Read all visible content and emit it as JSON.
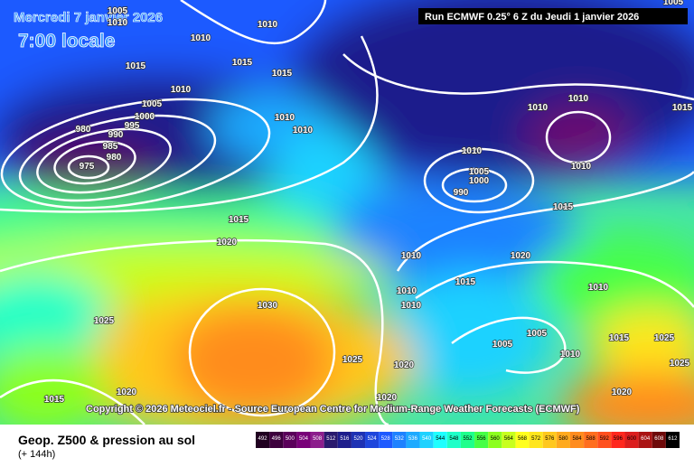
{
  "header": {
    "date": "Mercredi 7 janvier 2026",
    "time": "7:00 locale",
    "run": "Run ECMWF 0.25° 6 Z du Jeudi 1 janvier 2026"
  },
  "copyright": "Copyright © 2026 Meteociel.fr - Source European Centre for Medium-Range Weather Forecasts (ECMWF)",
  "footer": {
    "title": "Geop. Z500 & pression au sol",
    "lead": "(+ 144h)"
  },
  "isobar_labels": [
    1005,
    1010,
    1015,
    1010,
    1010,
    1015,
    1015,
    1010,
    1005,
    1000,
    995,
    990,
    985,
    980,
    975,
    980,
    1010,
    1010,
    1015,
    1020,
    1025,
    1030,
    1015,
    1020,
    1025,
    1020,
    1010,
    1010,
    1010,
    1015,
    1020,
    1005,
    1005,
    1010,
    1005,
    1000,
    990,
    1010,
    1010,
    1010,
    1015,
    1010,
    1015,
    1010,
    1025,
    1025,
    1020,
    1015,
    1005,
    1020
  ],
  "colorbar": {
    "labels": [
      492,
      496,
      500,
      504,
      508,
      512,
      516,
      520,
      524,
      528,
      532,
      536,
      540,
      544,
      548,
      552,
      556,
      560,
      564,
      568,
      572,
      576,
      580,
      584,
      588,
      592,
      596,
      600,
      604,
      608,
      612
    ],
    "colors": [
      "#200020",
      "#3c003c",
      "#5a005a",
      "#780078",
      "#8c1e8c",
      "#2a1a6e",
      "#1e1e8c",
      "#1e32b4",
      "#1e46dc",
      "#1e5aff",
      "#1e82ff",
      "#1eaaff",
      "#1ed2ff",
      "#1effff",
      "#1effc8",
      "#1eff8c",
      "#46ff46",
      "#8cff1e",
      "#c8ff1e",
      "#ffff1e",
      "#ffe61e",
      "#ffc81e",
      "#ffaa1e",
      "#ff8c1e",
      "#ff6e1e",
      "#ff501e",
      "#ff281e",
      "#dc1e1e",
      "#aa1414",
      "#6e0a0a",
      "#000000"
    ]
  }
}
